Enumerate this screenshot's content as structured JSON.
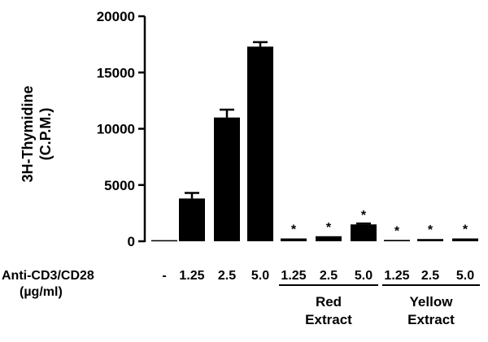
{
  "chart_data": {
    "type": "bar",
    "ylabel_line1": "3H-Thymidine",
    "ylabel_line2": "(C.P.M.)",
    "ylim": [
      0,
      20000
    ],
    "yticks": [
      "0",
      "5000",
      "10000",
      "15000",
      "20000"
    ],
    "row_label_line1": "Anti-CD3/CD28",
    "row_label_line2": "(µg/ml)",
    "categories": [
      "-",
      "1.25",
      "2.5",
      "5.0",
      "1.25",
      "2.5",
      "5.0",
      "1.25",
      "2.5",
      "5.0"
    ],
    "values": [
      100,
      3800,
      11000,
      17300,
      250,
      450,
      1500,
      120,
      200,
      250
    ],
    "errors": [
      0,
      500,
      700,
      400,
      0,
      0,
      80,
      0,
      0,
      0
    ],
    "significance": [
      "",
      "",
      "",
      "",
      "*",
      "*",
      "*",
      "*",
      "*",
      "*"
    ],
    "groups": [
      {
        "line1": "Red",
        "line2": "Extract",
        "from": 4,
        "to": 6
      },
      {
        "line1": "Yellow",
        "line2": "Extract",
        "from": 7,
        "to": 9
      }
    ],
    "bar_color": "#000000"
  }
}
